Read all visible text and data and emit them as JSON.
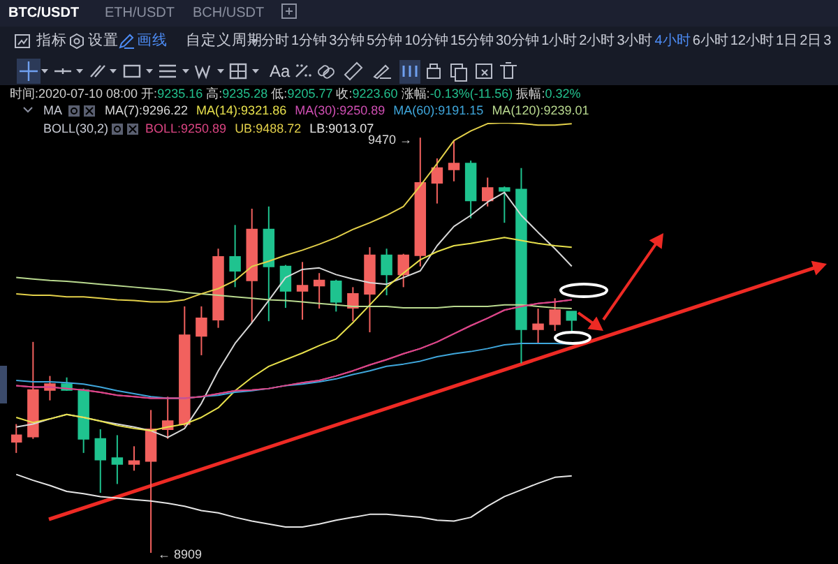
{
  "chart_data": {
    "type": "candlestick",
    "categories": [
      null,
      null,
      null,
      null,
      null,
      null,
      null,
      null,
      null,
      null,
      null,
      null,
      null,
      null,
      null,
      null,
      null,
      null,
      null,
      null,
      null,
      null,
      null,
      null,
      null,
      null,
      null,
      null,
      null,
      null,
      null,
      null,
      null,
      null
    ],
    "ohlc": [
      [
        9059,
        9083,
        9044,
        9068
      ],
      [
        9066,
        9194,
        9063,
        9129
      ],
      [
        9129,
        9148,
        9115,
        9137
      ],
      [
        9137,
        9146,
        9128,
        9129
      ],
      [
        9129,
        9131,
        9044,
        9063
      ],
      [
        9063,
        9076,
        8990,
        9035
      ],
      [
        9037,
        9068,
        9002,
        9029
      ],
      [
        9029,
        9053,
        9020,
        9033
      ],
      [
        9033,
        9102,
        8909,
        9076
      ],
      [
        9076,
        9120,
        9063,
        9087
      ],
      [
        9083,
        9242,
        9080,
        9203
      ],
      [
        9202,
        9242,
        9176,
        9226
      ],
      [
        9224,
        9320,
        9213,
        9309
      ],
      [
        9309,
        9352,
        9268,
        9290
      ],
      [
        9277,
        9374,
        9220,
        9346
      ],
      [
        9346,
        9377,
        9222,
        9296
      ],
      [
        9296,
        9298,
        9240,
        9263
      ],
      [
        9263,
        9302,
        9224,
        9270
      ],
      [
        9270,
        9287,
        9239,
        9277
      ],
      [
        9276,
        9278,
        9235,
        9248
      ],
      [
        9240,
        9268,
        9222,
        9259
      ],
      [
        9259,
        9322,
        9207,
        9311
      ],
      [
        9311,
        9320,
        9257,
        9285
      ],
      [
        9285,
        9313,
        9268,
        9311
      ],
      [
        9311,
        9470,
        9296,
        9409
      ],
      [
        9409,
        9442,
        9381,
        9429
      ],
      [
        9427,
        9466,
        9411,
        9435
      ],
      [
        9435,
        9439,
        9361,
        9385
      ],
      [
        9385,
        9416,
        9377,
        9402
      ],
      [
        9402,
        9404,
        9355,
        9398
      ],
      [
        9400,
        9429,
        9165,
        9211
      ],
      [
        9211,
        9239,
        9192,
        9218
      ],
      [
        9218,
        9253,
        9209,
        9237
      ],
      [
        9235.16,
        9235.28,
        9205.77,
        9223.6
      ]
    ],
    "colors": [
      "#f2615e",
      "#f2615e",
      "#f2615e",
      "#1fc38f",
      "#1fc38f",
      "#1fc38f",
      "#1fc38f",
      "#f2615e",
      "#f2615e",
      "#f2615e",
      "#f2615e",
      "#f2615e",
      "#f2615e",
      "#1fc38f",
      "#f2615e",
      "#1fc38f",
      "#1fc38f",
      "#f2615e",
      "#f2615e",
      "#1fc38f",
      "#f2615e",
      "#f2615e",
      "#1fc38f",
      "#f2615e",
      "#f2615e",
      "#f2615e",
      "#f2615e",
      "#1fc38f",
      "#f2615e",
      "#1fc38f",
      "#1fc38f",
      "#f2615e",
      "#f2615e",
      "#1fc38f"
    ],
    "series": [
      {
        "type": "line",
        "name": "MA(7):9296.22",
        "color": "#d8d8d8",
        "values": [
          9079,
          9083,
          9090,
          9096,
          9092,
          9087,
          9083,
          9079,
          9074,
          9065,
          9077,
          9111,
          9155,
          9192,
          9220,
          9250,
          9281,
          9292,
          9294,
          9285,
          9279,
          9274,
          9272,
          9281,
          9290,
          9324,
          9350,
          9365,
          9383,
          9396,
          9365,
          9342,
          9320,
          9296.22
        ]
      },
      {
        "type": "line",
        "name": "MA(14):9321.86",
        "color": "#e8e14c",
        "values": [
          9092,
          9085,
          9090,
          9096,
          9092,
          9087,
          9081,
          9077,
          9074,
          9079,
          9083,
          9092,
          9105,
          9128,
          9146,
          9161,
          9170,
          9179,
          9189,
          9198,
          9220,
          9244,
          9268,
          9287,
          9305,
          9316,
          9324,
          9327,
          9331,
          9335,
          9331,
          9327,
          9324,
          9321.86
        ]
      },
      {
        "type": "line",
        "name": "MA(30):9250.89",
        "color": "#d24fb5",
        "values": [
          9135,
          9133,
          9133,
          9131,
          9129,
          9126,
          9122,
          9120,
          9118,
          9118,
          9118,
          9120,
          9124,
          9128,
          9129,
          9131,
          9135,
          9139,
          9142,
          9148,
          9155,
          9163,
          9170,
          9178,
          9185,
          9194,
          9205,
          9216,
          9226,
          9237,
          9242,
          9246,
          9248,
          9250.89
        ]
      },
      {
        "type": "line",
        "name": "MA(60):9191.15",
        "color": "#3fa7dc",
        "values": [
          9142,
          9140,
          9140,
          9139,
          9137,
          9133,
          9128,
          9124,
          9120,
          9118,
          9118,
          9120,
          9122,
          9126,
          9128,
          9131,
          9135,
          9137,
          9140,
          9144,
          9150,
          9155,
          9161,
          9164,
          9168,
          9174,
          9178,
          9181,
          9185,
          9190,
          9192,
          9192,
          9192,
          9191.15
        ]
      },
      {
        "type": "line",
        "name": "MA(120):9239.01",
        "color": "#b9d98f",
        "values": [
          9281,
          9279,
          9277,
          9276,
          9274,
          9272,
          9270,
          9268,
          9266,
          9264,
          9261,
          9259,
          9257,
          9255,
          9253,
          9251,
          9250,
          9248,
          9246,
          9244,
          9242,
          9242,
          9242,
          9240,
          9240,
          9240,
          9242,
          9242,
          9242,
          9244,
          9244,
          9242,
          9240,
          9239.01
        ]
      },
      {
        "type": "line",
        "name": "BOLL:9250.89",
        "color": "#dd4583",
        "values": [
          9135,
          9133,
          9133,
          9131,
          9129,
          9126,
          9122,
          9120,
          9118,
          9118,
          9118,
          9120,
          9124,
          9128,
          9129,
          9131,
          9135,
          9139,
          9142,
          9148,
          9155,
          9163,
          9170,
          9178,
          9185,
          9194,
          9205,
          9216,
          9226,
          9237,
          9242,
          9246,
          9248,
          9250.89
        ]
      },
      {
        "type": "line",
        "name": "UB:9488.72",
        "color": "#e3d04a",
        "values": [
          9259,
          9257,
          9257,
          9255,
          9255,
          9253,
          9251,
          9250,
          9248,
          9248,
          9251,
          9259,
          9266,
          9277,
          9296,
          9303,
          9311,
          9318,
          9326,
          9335,
          9346,
          9355,
          9365,
          9377,
          9405,
          9435,
          9466,
          9479,
          9489,
          9490,
          9489,
          9487,
          9487,
          9488.72
        ]
      },
      {
        "type": "line",
        "name": "LB:9013.07",
        "color": "#e6e6e6",
        "values": [
          9015,
          9007,
          9000,
          8992,
          8989,
          8985,
          8983,
          8981,
          8979,
          8976,
          8972,
          8966,
          8963,
          8957,
          8952,
          8948,
          8944,
          8944,
          8948,
          8953,
          8957,
          8961,
          8961,
          8959,
          8957,
          8953,
          8952,
          8957,
          8972,
          8985,
          8994,
          9003,
          9011,
          9013.07
        ]
      }
    ],
    "legend": "top",
    "annotations": [
      "BTC/USDT",
      "ETH/USDT",
      "BCH/USDT",
      "指标",
      "设置",
      "画线",
      "自定义周期",
      "分时",
      "1分钟",
      "3分钟",
      "5分钟",
      "10分钟",
      "15分钟",
      "30分钟",
      "1小时",
      "2小时",
      "3小时",
      "4小时",
      "6小时",
      "12小时",
      "1日",
      "2日",
      "3",
      "Aa",
      "时间:2020-07-10 08:00 开:9235.16 高:9235.28 低:9205.77 收:9223.60 涨幅:-0.13%(-11.56) 振幅:0.32%",
      "MA",
      "BOLL(30,2)",
      "9470 →",
      "← 8909"
    ]
  }
}
